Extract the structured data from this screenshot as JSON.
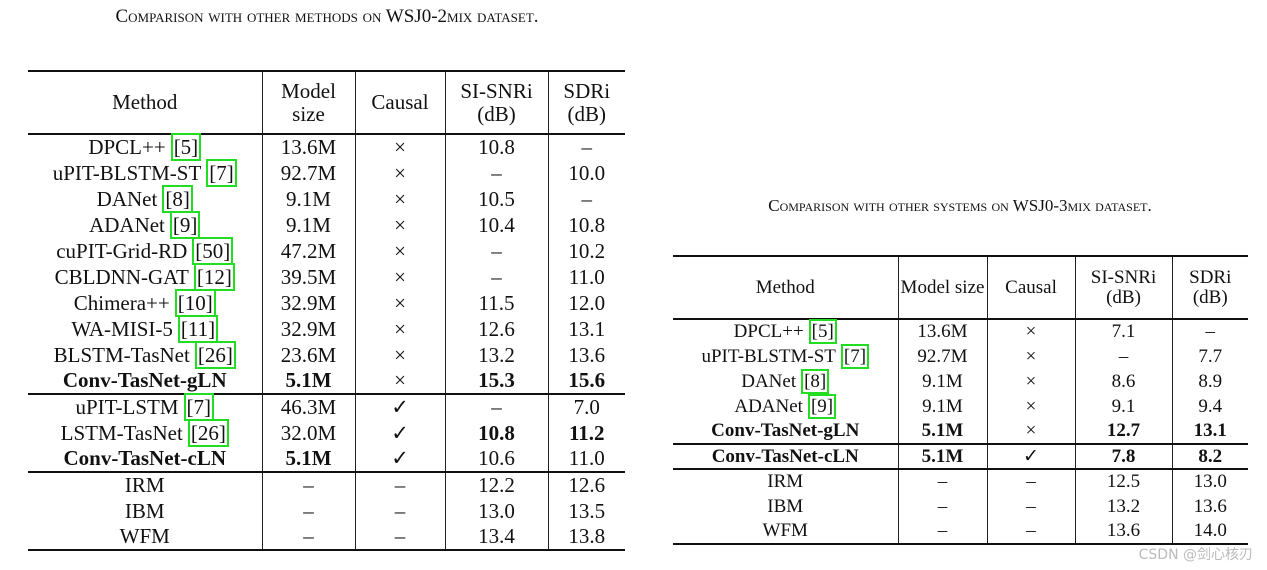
{
  "tables": [
    {
      "caption": "Comparison with other methods on WSJ0-2mix dataset.",
      "header": [
        "Method",
        "Model size",
        "Causal",
        "SI-SNRi (dB)",
        "SDRi (dB)"
      ],
      "groups": [
        [
          {
            "method": "DPCL++",
            "ref": "[5]",
            "cells": [
              "13.6M",
              "×",
              "10.8",
              "–"
            ]
          },
          {
            "method": "uPIT-BLSTM-ST",
            "ref": "[7]",
            "cells": [
              "92.7M",
              "×",
              "–",
              "10.0"
            ]
          },
          {
            "method": "DANet",
            "ref": "[8]",
            "cells": [
              "9.1M",
              "×",
              "10.5",
              "–"
            ]
          },
          {
            "method": "ADANet",
            "ref": "[9]",
            "cells": [
              "9.1M",
              "×",
              "10.4",
              "10.8"
            ]
          },
          {
            "method": "cuPIT-Grid-RD",
            "ref": "[50]",
            "cells": [
              "47.2M",
              "×",
              "–",
              "10.2"
            ]
          },
          {
            "method": "CBLDNN-GAT",
            "ref": "[12]",
            "cells": [
              "39.5M",
              "×",
              "–",
              "11.0"
            ]
          },
          {
            "method": "Chimera++",
            "ref": "[10]",
            "cells": [
              "32.9M",
              "×",
              "11.5",
              "12.0"
            ]
          },
          {
            "method": "WA-MISI-5",
            "ref": "[11]",
            "cells": [
              "32.9M",
              "×",
              "12.6",
              "13.1"
            ]
          },
          {
            "method": "BLSTM-TasNet",
            "ref": "[26]",
            "cells": [
              "23.6M",
              "×",
              "13.2",
              "13.6"
            ]
          },
          {
            "method": {
              "text": "Conv-TasNet-gLN",
              "bold": true
            },
            "cells": [
              {
                "text": "5.1M",
                "bold": true
              },
              "×",
              {
                "text": "15.3",
                "bold": true
              },
              {
                "text": "15.6",
                "bold": true
              }
            ]
          }
        ],
        [
          {
            "method": "uPIT-LSTM",
            "ref": "[7]",
            "cells": [
              "46.3M",
              "✓",
              "–",
              "7.0"
            ]
          },
          {
            "method": "LSTM-TasNet",
            "ref": "[26]",
            "cells": [
              "32.0M",
              "✓",
              {
                "text": "10.8",
                "bold": true
              },
              {
                "text": "11.2",
                "bold": true
              }
            ]
          },
          {
            "method": {
              "text": "Conv-TasNet-cLN",
              "bold": true
            },
            "cells": [
              {
                "text": "5.1M",
                "bold": true
              },
              "✓",
              "10.6",
              "11.0"
            ]
          }
        ],
        [
          {
            "method": "IRM",
            "cells": [
              "–",
              "–",
              "12.2",
              "12.6"
            ]
          },
          {
            "method": "IBM",
            "cells": [
              "–",
              "–",
              "13.0",
              "13.5"
            ]
          },
          {
            "method": "WFM",
            "cells": [
              "–",
              "–",
              "13.4",
              "13.8"
            ]
          }
        ]
      ]
    },
    {
      "caption": "Comparison with other systems on WSJ0-3mix dataset.",
      "header": [
        "Method",
        "Model size",
        "Causal",
        "SI-SNRi (dB)",
        "SDRi (dB)"
      ],
      "groups": [
        [
          {
            "method": "DPCL++",
            "ref": "[5]",
            "cells": [
              "13.6M",
              "×",
              "7.1",
              "–"
            ]
          },
          {
            "method": "uPIT-BLSTM-ST",
            "ref": "[7]",
            "cells": [
              "92.7M",
              "×",
              "–",
              "7.7"
            ]
          },
          {
            "method": "DANet",
            "ref": "[8]",
            "cells": [
              "9.1M",
              "×",
              "8.6",
              "8.9"
            ]
          },
          {
            "method": "ADANet",
            "ref": "[9]",
            "cells": [
              "9.1M",
              "×",
              "9.1",
              "9.4"
            ]
          },
          {
            "method": {
              "text": "Conv-TasNet-gLN",
              "bold": true
            },
            "cells": [
              {
                "text": "5.1M",
                "bold": true
              },
              "×",
              {
                "text": "12.7",
                "bold": true
              },
              {
                "text": "13.1",
                "bold": true
              }
            ]
          }
        ],
        [
          {
            "method": {
              "text": "Conv-TasNet-cLN",
              "bold": true
            },
            "cells": [
              {
                "text": "5.1M",
                "bold": true
              },
              "✓",
              {
                "text": "7.8",
                "bold": true
              },
              {
                "text": "8.2",
                "bold": true
              }
            ]
          }
        ],
        [
          {
            "method": "IRM",
            "cells": [
              "–",
              "–",
              "12.5",
              "13.0"
            ]
          },
          {
            "method": "IBM",
            "cells": [
              "–",
              "–",
              "13.2",
              "13.6"
            ]
          },
          {
            "method": "WFM",
            "cells": [
              "–",
              "–",
              "13.6",
              "14.0"
            ]
          }
        ]
      ]
    }
  ],
  "watermark": "CSDN @剑心核刃"
}
